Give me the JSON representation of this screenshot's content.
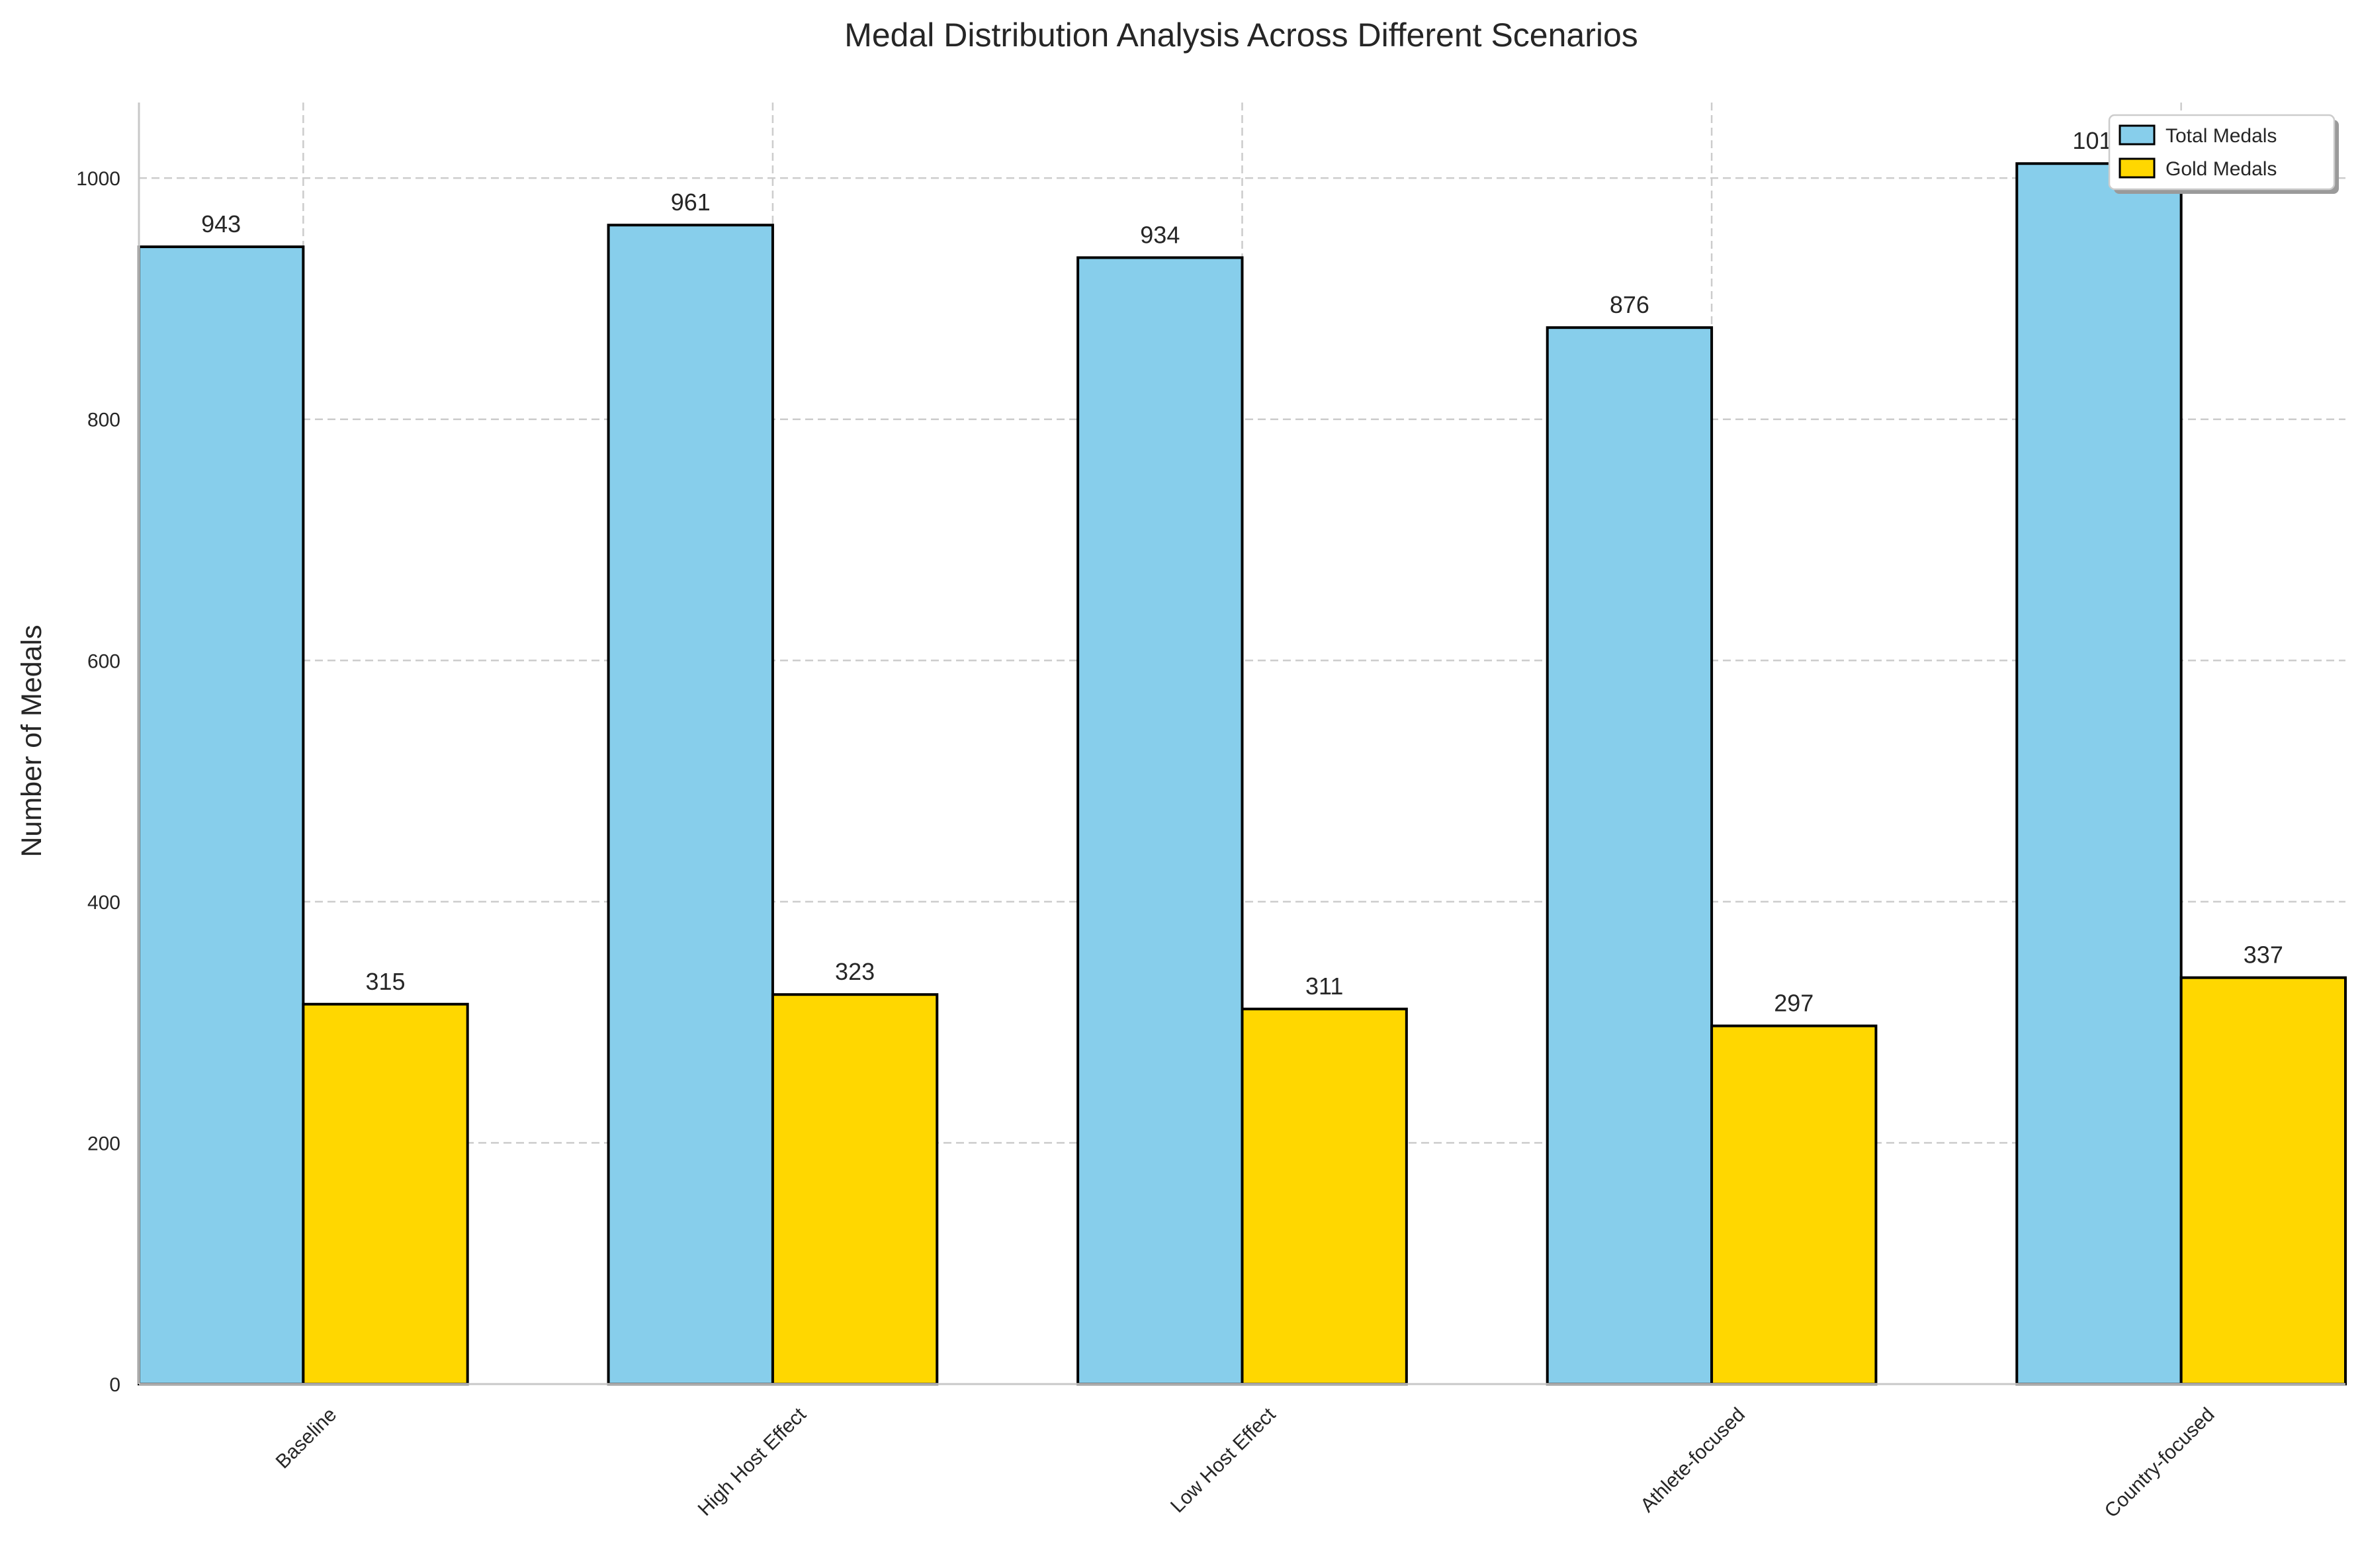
{
  "chart_data": {
    "type": "bar",
    "title": "Medal Distribution Analysis Across Different Scenarios",
    "xlabel": "",
    "ylabel": "Number of Medals",
    "categories": [
      "Baseline",
      "High Host Effect",
      "Low Host Effect",
      "Athlete-focused",
      "Country-focused"
    ],
    "series": [
      {
        "name": "Total Medals",
        "values": [
          943,
          961,
          934,
          876,
          1012
        ],
        "color": "#87ceeb"
      },
      {
        "name": "Gold Medals",
        "values": [
          315,
          323,
          311,
          297,
          337
        ],
        "color": "#ffd700"
      }
    ],
    "ylim": [
      0,
      1062.6
    ],
    "yticks": [
      0,
      200,
      400,
      600,
      800,
      1000
    ],
    "grid": true,
    "legend_position": "top-right",
    "bar_edge_color": "#000000"
  }
}
